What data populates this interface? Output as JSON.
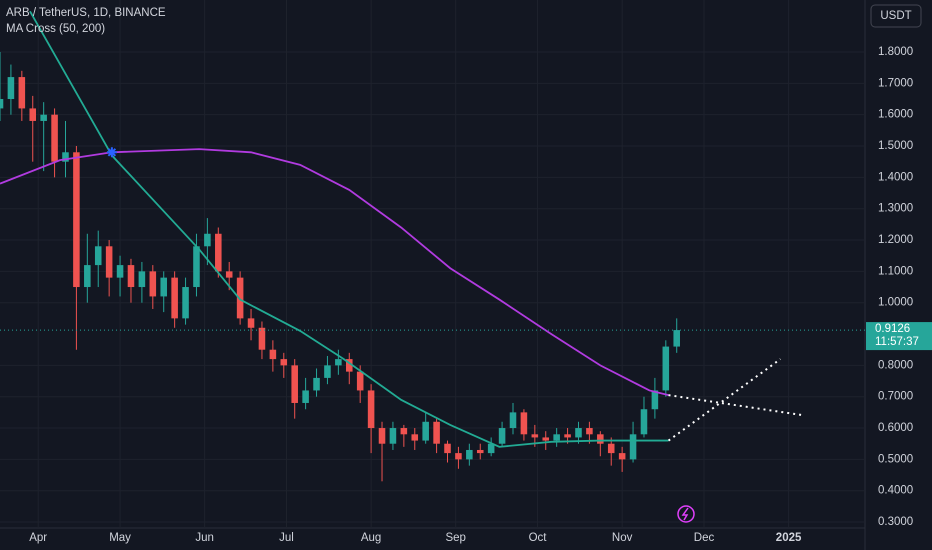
{
  "chart_data": {
    "type": "candlestick",
    "title": "ARB / TetherUS, 1D, BINANCE",
    "indicator": "MA Cross (50, 200)",
    "currency": "USDT",
    "countdown": "11:57:37",
    "up_color": "#26a69a",
    "down_color": "#ef5350",
    "x": [
      -14,
      -10,
      -6,
      -2,
      2,
      6,
      10,
      14,
      18,
      22,
      26,
      30,
      34,
      38,
      42,
      46,
      50,
      54,
      58,
      62,
      66,
      70,
      74,
      78,
      82,
      86,
      90,
      94,
      98,
      102,
      106,
      110,
      114,
      118,
      122,
      126,
      130,
      134,
      138,
      142,
      146,
      150,
      154,
      158,
      162,
      166,
      170,
      174,
      178,
      182,
      186,
      190,
      194,
      198,
      202,
      206,
      210,
      214,
      218,
      222,
      226,
      230,
      234
    ],
    "open": [
      1.62,
      1.65,
      1.72,
      1.62,
      1.58,
      1.6,
      1.45,
      1.48,
      1.05,
      1.12,
      1.18,
      1.08,
      1.12,
      1.05,
      1.1,
      1.02,
      1.08,
      0.95,
      1.05,
      1.18,
      1.22,
      1.1,
      1.08,
      0.95,
      0.92,
      0.85,
      0.82,
      0.8,
      0.68,
      0.72,
      0.76,
      0.8,
      0.82,
      0.78,
      0.72,
      0.6,
      0.55,
      0.6,
      0.58,
      0.56,
      0.62,
      0.55,
      0.52,
      0.5,
      0.53,
      0.52,
      0.55,
      0.6,
      0.65,
      0.58,
      0.57,
      0.56,
      0.58,
      0.57,
      0.6,
      0.58,
      0.55,
      0.52,
      0.5,
      0.58,
      0.66,
      0.72,
      0.86
    ],
    "high": [
      1.8,
      1.76,
      1.74,
      1.66,
      1.64,
      1.62,
      1.58,
      1.5,
      1.22,
      1.23,
      1.2,
      1.15,
      1.14,
      1.13,
      1.12,
      1.1,
      1.1,
      1.08,
      1.22,
      1.27,
      1.24,
      1.13,
      1.1,
      0.98,
      0.94,
      0.88,
      0.84,
      0.82,
      0.76,
      0.79,
      0.83,
      0.85,
      0.84,
      0.8,
      0.74,
      0.62,
      0.62,
      0.61,
      0.6,
      0.65,
      0.63,
      0.56,
      0.54,
      0.55,
      0.55,
      0.57,
      0.62,
      0.68,
      0.66,
      0.61,
      0.59,
      0.6,
      0.6,
      0.62,
      0.62,
      0.59,
      0.57,
      0.54,
      0.62,
      0.7,
      0.76,
      0.88,
      0.95
    ],
    "low": [
      1.58,
      1.6,
      1.58,
      1.45,
      1.42,
      1.4,
      1.4,
      0.85,
      1.0,
      1.05,
      1.02,
      1.02,
      1.0,
      1.0,
      0.98,
      0.97,
      0.92,
      0.93,
      1.02,
      1.12,
      1.08,
      1.04,
      0.93,
      0.88,
      0.82,
      0.78,
      0.76,
      0.63,
      0.66,
      0.7,
      0.74,
      0.77,
      0.74,
      0.68,
      0.52,
      0.43,
      0.53,
      0.54,
      0.53,
      0.55,
      0.52,
      0.49,
      0.47,
      0.48,
      0.5,
      0.51,
      0.54,
      0.58,
      0.56,
      0.54,
      0.53,
      0.54,
      0.55,
      0.55,
      0.55,
      0.51,
      0.48,
      0.46,
      0.49,
      0.57,
      0.63,
      0.7,
      0.84
    ],
    "close": [
      1.65,
      1.72,
      1.62,
      1.58,
      1.6,
      1.45,
      1.48,
      1.05,
      1.12,
      1.18,
      1.08,
      1.12,
      1.05,
      1.1,
      1.02,
      1.08,
      0.95,
      1.05,
      1.18,
      1.22,
      1.1,
      1.08,
      0.95,
      0.92,
      0.85,
      0.82,
      0.8,
      0.68,
      0.72,
      0.76,
      0.8,
      0.82,
      0.78,
      0.72,
      0.6,
      0.55,
      0.6,
      0.58,
      0.56,
      0.62,
      0.55,
      0.52,
      0.5,
      0.53,
      0.52,
      0.55,
      0.6,
      0.65,
      0.58,
      0.57,
      0.56,
      0.58,
      0.57,
      0.6,
      0.58,
      0.55,
      0.52,
      0.5,
      0.58,
      0.66,
      0.72,
      0.86,
      0.9126
    ],
    "lines": [
      {
        "color": "#22ab94",
        "style": "solid",
        "x": [
          -3,
          27,
          59,
          74,
          96,
          112,
          133,
          151,
          169,
          188,
          206,
          231
        ],
        "values": [
          1.93,
          1.47,
          1.17,
          1.01,
          0.91,
          0.82,
          0.69,
          0.61,
          0.54,
          0.556,
          0.56,
          0.56
        ]
      },
      {
        "color": "#b13be0",
        "style": "solid",
        "x": [
          -14,
          8,
          27,
          59,
          78,
          96,
          114,
          133,
          151,
          169,
          188,
          206,
          224,
          231
        ],
        "values": [
          1.38,
          1.455,
          1.48,
          1.49,
          1.48,
          1.44,
          1.36,
          1.24,
          1.11,
          1.01,
          0.9,
          0.8,
          0.72,
          0.705
        ]
      },
      {
        "color": "#ffffff",
        "style": "dotted",
        "x": [
          231,
          272
        ],
        "values": [
          0.56,
          0.82
        ]
      },
      {
        "color": "#ffffff",
        "style": "dotted",
        "x": [
          231,
          281
        ],
        "values": [
          0.705,
          0.64
        ]
      }
    ],
    "cross": {
      "x": 27,
      "value": 1.48,
      "color": "#2962ff"
    },
    "xlim": [
      -14,
      303
    ],
    "ylim": [
      0.281,
      1.966
    ],
    "xticks": [
      {
        "value": 0,
        "label": "Apr"
      },
      {
        "value": 30,
        "label": "May"
      },
      {
        "value": 61,
        "label": "Jun"
      },
      {
        "value": 91,
        "label": "Jul"
      },
      {
        "value": 122,
        "label": "Aug"
      },
      {
        "value": 153,
        "label": "Sep"
      },
      {
        "value": 183,
        "label": "Oct"
      },
      {
        "value": 214,
        "label": "Nov"
      },
      {
        "value": 244,
        "label": "Dec"
      },
      {
        "value": 275,
        "label": "2025"
      }
    ],
    "yticks": [
      {
        "value": 0.3,
        "label": "0.3000"
      },
      {
        "value": 0.4,
        "label": "0.4000"
      },
      {
        "value": 0.5,
        "label": "0.5000"
      },
      {
        "value": 0.6,
        "label": "0.6000"
      },
      {
        "value": 0.7,
        "label": "0.7000"
      },
      {
        "value": 0.8,
        "label": "0.8000"
      },
      {
        "value": 1.0,
        "label": "1.0000"
      },
      {
        "value": 1.1,
        "label": "1.1000"
      },
      {
        "value": 1.2,
        "label": "1.2000"
      },
      {
        "value": 1.3,
        "label": "1.3000"
      },
      {
        "value": 1.4,
        "label": "1.4000"
      },
      {
        "value": 1.5,
        "label": "1.5000"
      },
      {
        "value": 1.6,
        "label": "1.6000"
      },
      {
        "value": 1.7,
        "label": "1.7000"
      },
      {
        "value": 1.8,
        "label": "1.8000"
      }
    ],
    "grid": true
  }
}
